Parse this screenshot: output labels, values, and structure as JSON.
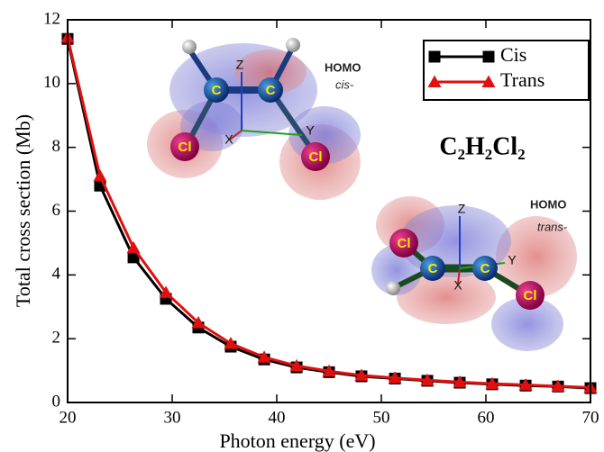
{
  "chart_data": {
    "type": "line",
    "xlabel": "Photon energy (eV)",
    "ylabel": "Total cross section (Mb)",
    "annotation": "C₂H₂Cl₂",
    "x": [
      20,
      23.1,
      26.3,
      29.4,
      32.5,
      35.6,
      38.8,
      41.9,
      45,
      48.1,
      51.3,
      54.4,
      57.5,
      60.6,
      63.8,
      66.9,
      70
    ],
    "series": [
      {
        "name": "Cis",
        "color": "#000000",
        "marker": "square",
        "values": [
          11.4,
          6.8,
          4.55,
          3.25,
          2.35,
          1.75,
          1.35,
          1.1,
          0.95,
          0.82,
          0.75,
          0.68,
          0.62,
          0.57,
          0.53,
          0.5,
          0.45
        ]
      },
      {
        "name": "Trans",
        "color": "#e01010",
        "marker": "triangle",
        "values": [
          11.45,
          7.1,
          4.85,
          3.45,
          2.5,
          1.85,
          1.42,
          1.15,
          0.98,
          0.85,
          0.77,
          0.7,
          0.64,
          0.59,
          0.55,
          0.51,
          0.47
        ]
      }
    ],
    "xlim": [
      20,
      70
    ],
    "ylim": [
      0,
      12
    ],
    "xticks": [
      20,
      30,
      40,
      50,
      60,
      70
    ],
    "yticks": [
      0,
      2,
      4,
      6,
      8,
      10,
      12
    ],
    "legend": "upper right",
    "insets": [
      {
        "title": "HOMO",
        "subtitle": "cis-",
        "labels": [
          "C",
          "C",
          "Cl",
          "Cl",
          "Z",
          "X",
          "Y"
        ]
      },
      {
        "title": "HOMO",
        "subtitle": "trans-",
        "labels": [
          "Cl",
          "C",
          "C",
          "Cl",
          "Z",
          "X",
          "Y"
        ]
      }
    ]
  }
}
